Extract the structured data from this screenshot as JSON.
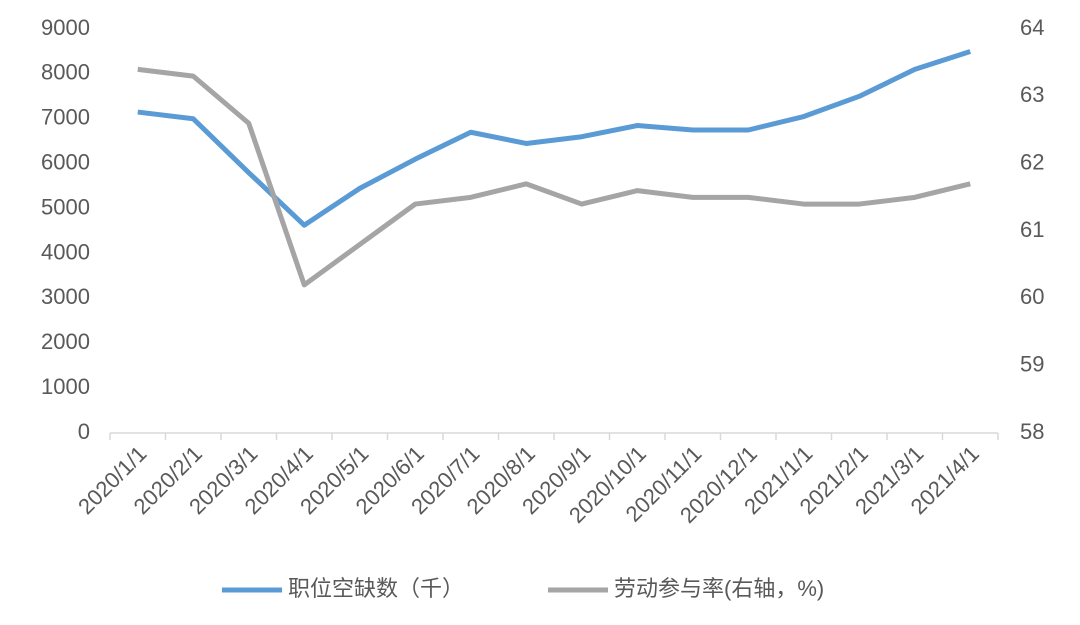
{
  "chart_data": {
    "type": "line",
    "categories": [
      "2020/1/1",
      "2020/2/1",
      "2020/3/1",
      "2020/4/1",
      "2020/5/1",
      "2020/6/1",
      "2020/7/1",
      "2020/8/1",
      "2020/9/1",
      "2020/10/1",
      "2020/11/1",
      "2020/12/1",
      "2021/1/1",
      "2021/2/1",
      "2021/3/1",
      "2021/4/1"
    ],
    "series": [
      {
        "name": "职位空缺数（千）",
        "color": "#5b9bd5",
        "values": [
          7150,
          7000,
          5800,
          4630,
          5450,
          6100,
          6700,
          6450,
          6600,
          6850,
          6750,
          6750,
          7050,
          7500,
          8100,
          8500
        ]
      },
      {
        "name": "劳动参与率(右轴，%)",
        "color": "#a5a5a5",
        "axis": "y2",
        "values": [
          63.4,
          63.3,
          62.6,
          60.2,
          60.8,
          61.4,
          61.5,
          61.7,
          61.4,
          61.6,
          61.5,
          61.5,
          61.4,
          61.4,
          61.5,
          61.7
        ]
      }
    ],
    "ylim": [
      0,
      9000
    ],
    "yticks": [
      0,
      1000,
      2000,
      3000,
      4000,
      5000,
      6000,
      7000,
      8000,
      9000
    ],
    "y2lim": [
      58,
      64
    ],
    "y2ticks": [
      58,
      59,
      60,
      61,
      62,
      63,
      64
    ],
    "grid": false,
    "legend": "bottom"
  }
}
